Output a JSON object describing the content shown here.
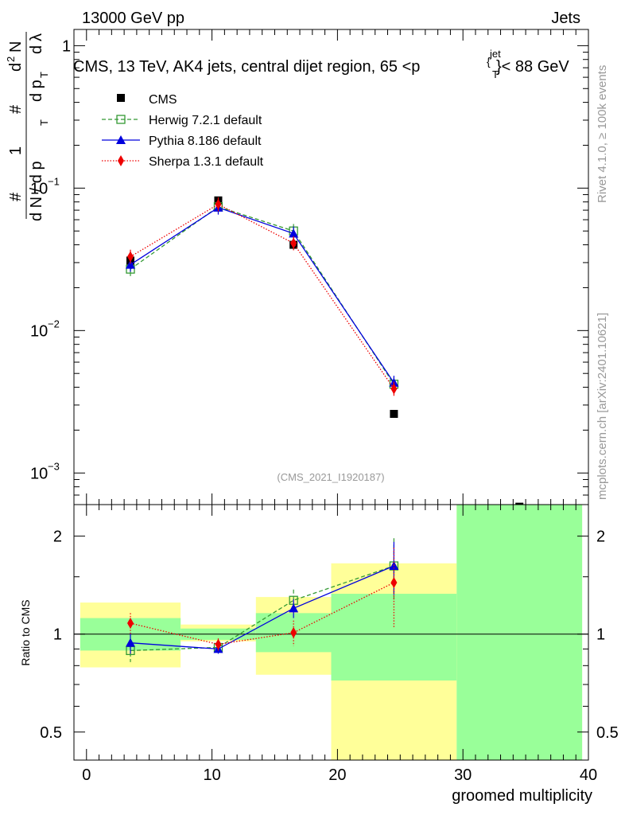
{
  "header": {
    "left_title": "13000 GeV pp",
    "right_title": "Jets",
    "plot_title": "CMS, 13 TeV, AK4 jets, central dijet region, 65 <p",
    "plot_title_sup": "jet",
    "plot_title_sub": "T",
    "plot_title_tail": "}< 88 GeV",
    "plot_title_brace": "{",
    "analysis_id": "(CMS_2021_I1920187)",
    "side_rivet": "Rivet 4.1.0, ≥ 100k events",
    "side_mcplots": "mcplots.cern.ch [arXiv:2401.10621]"
  },
  "colors": {
    "cms": "#000000",
    "herwig": "#339933",
    "pythia": "#0000dd",
    "sherpa": "#ee0000",
    "band_yellow": "#ffff99",
    "band_green": "#99ff99"
  },
  "chart_data": [
    {
      "type": "line",
      "name": "main-panel",
      "yscale": "log",
      "ylim": [
        0.0006,
        1.3
      ],
      "xlim": [
        -1,
        40
      ],
      "ylabel_parts": [
        "1",
        "#",
        "d N / d p",
        "T",
        "#",
        "d p",
        "T",
        "d",
        "2",
        "N",
        "d",
        "λ",
        "#"
      ],
      "y_ticks": [
        {
          "value": 1,
          "base": "1",
          "exp": ""
        },
        {
          "value": 0.1,
          "base": "10",
          "exp": "−1"
        },
        {
          "value": 0.01,
          "base": "10",
          "exp": "−2"
        },
        {
          "value": 0.001,
          "base": "10",
          "exp": "−3"
        }
      ],
      "legend": [
        "CMS",
        "Herwig 7.2.1 default",
        "Pythia 8.186 default",
        "Sherpa 1.3.1 default"
      ],
      "series": [
        {
          "name": "CMS",
          "x": [
            3.5,
            10.5,
            16.5,
            24.5,
            34.5
          ],
          "y": [
            0.031,
            0.082,
            0.04,
            0.0026,
            0.00058
          ],
          "marker": "square"
        },
        {
          "name": "Herwig 7.2.1 default",
          "x": [
            3.5,
            10.5,
            16.5,
            24.5
          ],
          "y": [
            0.027,
            0.074,
            0.05,
            0.0042
          ],
          "marker": "open-square"
        },
        {
          "name": "Pythia 8.186 default",
          "x": [
            3.5,
            10.5,
            16.5,
            24.5
          ],
          "y": [
            0.029,
            0.073,
            0.048,
            0.0043
          ],
          "marker": "triangle"
        },
        {
          "name": "Sherpa 1.3.1 default",
          "x": [
            3.5,
            10.5,
            16.5,
            24.5
          ],
          "y": [
            0.033,
            0.077,
            0.041,
            0.0039
          ],
          "marker": "diamond"
        }
      ]
    },
    {
      "type": "line",
      "name": "ratio-panel",
      "yscale": "log",
      "ylim": [
        0.41,
        2.5
      ],
      "xlim": [
        -1,
        40
      ],
      "ylabel": "Ratio to CMS",
      "xlabel": "groomed multiplicity",
      "x_ticks": [
        0,
        10,
        20,
        30,
        40
      ],
      "y_ticks": [
        0.5,
        1,
        2
      ],
      "bands": [
        {
          "x0": -0.5,
          "x1": 7.5,
          "yellow": [
            0.79,
            1.25
          ],
          "green": [
            0.89,
            1.12
          ]
        },
        {
          "x0": 7.5,
          "x1": 13.5,
          "yellow": [
            0.95,
            1.07
          ],
          "green": [
            0.96,
            1.04
          ]
        },
        {
          "x0": 13.5,
          "x1": 19.5,
          "yellow": [
            0.75,
            1.3
          ],
          "green": [
            0.88,
            1.16
          ]
        },
        {
          "x0": 19.5,
          "x1": 29.5,
          "yellow": [
            0.4,
            1.65
          ],
          "green": [
            0.72,
            1.33
          ]
        },
        {
          "x0": 29.5,
          "x1": 39.5,
          "yellow": [
            0.4,
            2.5
          ],
          "green": [
            0.4,
            2.5
          ]
        }
      ],
      "series": [
        {
          "name": "Herwig 7.2.1 default",
          "x": [
            3.5,
            10.5,
            16.5,
            24.5
          ],
          "y": [
            0.89,
            0.91,
            1.27,
            1.62
          ],
          "err": [
            0.07,
            0.03,
            0.1,
            0.35
          ]
        },
        {
          "name": "Pythia 8.186 default",
          "x": [
            3.5,
            10.5,
            16.5,
            24.5
          ],
          "y": [
            0.94,
            0.9,
            1.2,
            1.62
          ],
          "err": [
            0.07,
            0.03,
            0.08,
            0.3
          ]
        },
        {
          "name": "Sherpa 1.3.1 default",
          "x": [
            3.5,
            10.5,
            16.5,
            24.5
          ],
          "y": [
            1.08,
            0.93,
            1.01,
            1.44
          ],
          "err": [
            0.08,
            0.04,
            0.09,
            0.4
          ]
        }
      ]
    }
  ]
}
